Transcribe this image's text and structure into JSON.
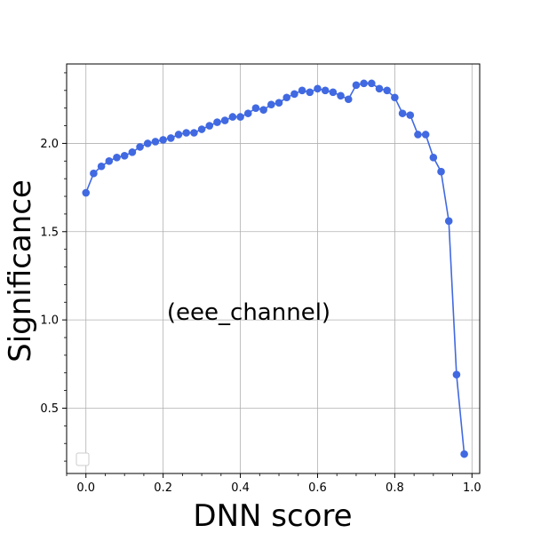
{
  "chart_data": {
    "type": "line",
    "xlabel": "DNN score",
    "ylabel": "Significance",
    "annotation": "(eee_channel)",
    "xlim": [
      -0.05,
      1.02
    ],
    "ylim": [
      0.13,
      2.45
    ],
    "grid": true,
    "legend": "lower-left, empty",
    "color": "#4169e1",
    "x_ticks": [
      0.0,
      0.2,
      0.4,
      0.6,
      0.8,
      1.0
    ],
    "x_tick_labels": [
      "0.0",
      "0.2",
      "0.4",
      "0.6",
      "0.8",
      "1.0"
    ],
    "y_ticks": [
      0.5,
      1.0,
      1.5,
      2.0
    ],
    "y_tick_labels": [
      "0.5",
      "1.0",
      "1.5",
      "2.0"
    ],
    "series": [
      {
        "x": [
          0.0,
          0.02,
          0.04,
          0.06,
          0.08,
          0.1,
          0.12,
          0.14,
          0.16,
          0.18,
          0.2,
          0.22,
          0.24,
          0.26,
          0.28,
          0.3,
          0.32,
          0.34,
          0.36,
          0.38,
          0.4,
          0.42,
          0.44,
          0.46,
          0.48,
          0.5,
          0.52,
          0.54,
          0.56,
          0.58,
          0.6,
          0.62,
          0.64,
          0.66,
          0.68,
          0.7,
          0.72,
          0.74,
          0.76,
          0.78,
          0.8,
          0.82,
          0.84,
          0.86,
          0.88,
          0.9,
          0.92,
          0.94,
          0.96,
          0.98
        ],
        "values": [
          1.72,
          1.83,
          1.87,
          1.9,
          1.92,
          1.93,
          1.95,
          1.98,
          2.0,
          2.01,
          2.02,
          2.03,
          2.05,
          2.06,
          2.06,
          2.08,
          2.1,
          2.12,
          2.13,
          2.15,
          2.15,
          2.17,
          2.2,
          2.19,
          2.22,
          2.23,
          2.26,
          2.28,
          2.3,
          2.29,
          2.31,
          2.3,
          2.29,
          2.27,
          2.25,
          2.33,
          2.34,
          2.34,
          2.31,
          2.3,
          2.26,
          2.17,
          2.16,
          2.05,
          2.05,
          1.92,
          1.84,
          1.56,
          0.69,
          0.24
        ]
      }
    ]
  }
}
